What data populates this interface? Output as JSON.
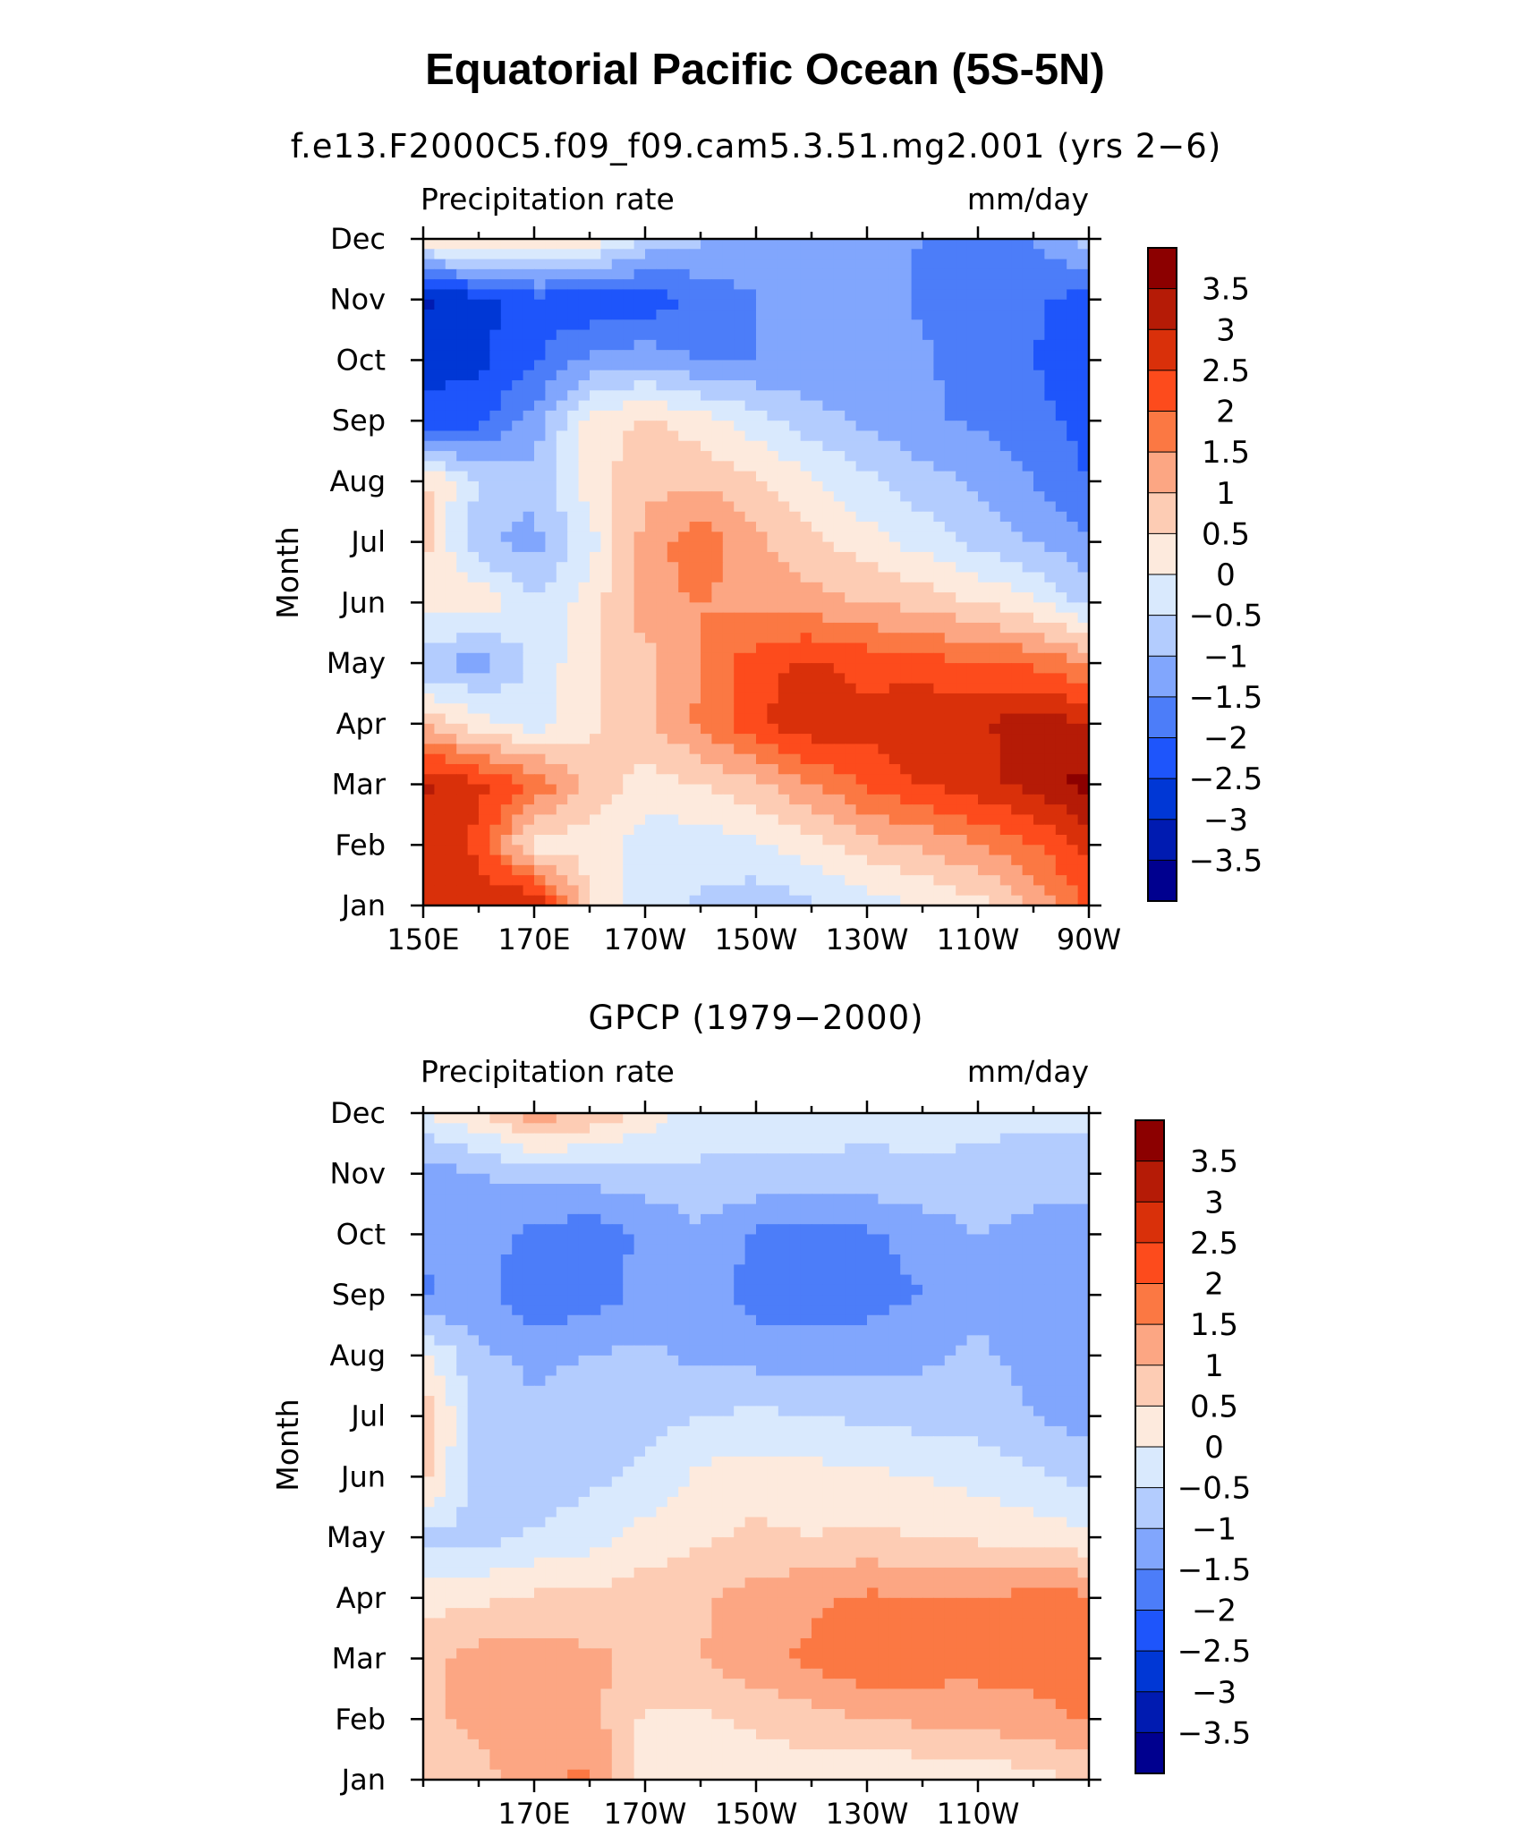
{
  "figure_title": "Equatorial Pacific Ocean (5S-5N)",
  "colorbar_levels": [
    "3.5",
    "3",
    "2.5",
    "2",
    "1.5",
    "1",
    "0.5",
    "0",
    "−0.5",
    "−1",
    "−1.5",
    "−2",
    "−2.5",
    "−3",
    "−3.5"
  ],
  "colors": [
    "#00008f",
    "#001bb1",
    "#0037d5",
    "#1e55fb",
    "#4c7df9",
    "#81a6fd",
    "#b3ccfe",
    "#d9e9fd",
    "#fdeadd",
    "#fdccb4",
    "#fca683",
    "#fb7843",
    "#fd4b1c",
    "#d9300a",
    "#b51b06",
    "#8c0000"
  ],
  "chart_data": [
    {
      "type": "heatmap",
      "title": "f.e13.F2000C5.f09_f09.cam5.3.51.mg2.001 (yrs 2−6)",
      "left_label": "Precipitation rate",
      "right_label": "mm/day",
      "xlabel": "",
      "ylabel": "Month",
      "xlim": [
        150,
        270
      ],
      "x_ticks": [
        150,
        170,
        190,
        210,
        230,
        250,
        270
      ],
      "x_tick_labels": [
        "150E",
        "170E",
        "170W",
        "150W",
        "130W",
        "110W",
        "90W"
      ],
      "y_tick_labels": [
        "Jan",
        "Feb",
        "Mar",
        "Apr",
        "May",
        "Jun",
        "Jul",
        "Aug",
        "Sep",
        "Oct",
        "Nov",
        "Dec"
      ],
      "levels": [
        -3.5,
        -3,
        -2.5,
        -2,
        -1.5,
        -1,
        -0.5,
        0,
        0.5,
        1,
        1.5,
        2,
        2.5,
        3,
        3.5
      ],
      "x": [
        150,
        160,
        170,
        180,
        190,
        200,
        210,
        220,
        230,
        240,
        250,
        260,
        270
      ],
      "y": [
        "Jan",
        "Feb",
        "Mar",
        "Apr",
        "May",
        "Jun",
        "Jul",
        "Aug",
        "Sep",
        "Oct",
        "Nov",
        "Dec"
      ],
      "z": [
        [
          2.8,
          2.9,
          3.2,
          0.5,
          -0.2,
          -0.6,
          -0.8,
          -0.6,
          -0.3,
          0.0,
          0.3,
          1.0,
          2.2
        ],
        [
          2.7,
          2.4,
          0.2,
          0.3,
          -0.3,
          -0.3,
          -0.1,
          0.3,
          0.8,
          1.1,
          1.5,
          2.0,
          2.6
        ],
        [
          3.1,
          2.6,
          2.0,
          0.8,
          0.3,
          0.5,
          0.9,
          1.5,
          2.1,
          2.5,
          2.8,
          3.2,
          3.7
        ],
        [
          0.9,
          0.2,
          -0.3,
          0.4,
          0.9,
          1.6,
          2.4,
          2.9,
          2.7,
          3.0,
          2.9,
          3.3,
          3.0
        ],
        [
          -1.0,
          -1.2,
          -0.4,
          0.4,
          0.8,
          1.5,
          2.3,
          2.6,
          2.3,
          2.2,
          2.0,
          1.9,
          1.5
        ],
        [
          0.3,
          0.4,
          -0.5,
          0.2,
          1.3,
          1.5,
          1.3,
          1.2,
          1.0,
          0.8,
          0.5,
          0.1,
          -0.7
        ],
        [
          0.7,
          -0.9,
          -1.2,
          -0.2,
          1.2,
          1.9,
          1.1,
          0.6,
          0.2,
          -0.2,
          -0.7,
          -1.0,
          -1.4
        ],
        [
          0.6,
          -0.5,
          -0.8,
          0.3,
          0.8,
          0.9,
          0.6,
          0.1,
          -0.4,
          -0.8,
          -1.1,
          -1.5,
          -2.0
        ],
        [
          -2.3,
          -2.2,
          -1.3,
          0.2,
          0.6,
          0.2,
          -0.3,
          -0.8,
          -1.1,
          -1.4,
          -1.6,
          -1.8,
          -2.2
        ],
        [
          -2.7,
          -2.6,
          -2.1,
          -1.4,
          -1.2,
          -1.5,
          -1.5,
          -1.4,
          -1.2,
          -1.4,
          -1.8,
          -2.0,
          -2.4
        ],
        [
          -3.1,
          -2.7,
          -2.2,
          -2.4,
          -2.3,
          -1.9,
          -1.5,
          -1.3,
          -1.2,
          -1.6,
          -1.9,
          -1.9,
          -2.2
        ],
        [
          0.3,
          0.5,
          0.7,
          0.4,
          -0.6,
          -0.9,
          -1.2,
          -1.3,
          -1.4,
          -1.5,
          -1.6,
          -1.5,
          -0.8
        ]
      ]
    },
    {
      "type": "heatmap",
      "title": "GPCP (1979−2000)",
      "left_label": "Precipitation rate",
      "right_label": "mm/day",
      "xlabel": "",
      "ylabel": "Month",
      "xlim": [
        150,
        270
      ],
      "x_ticks": [
        170,
        190,
        210,
        230,
        250
      ],
      "x_tick_labels": [
        "170E",
        "170W",
        "150W",
        "130W",
        "110W"
      ],
      "y_tick_labels": [
        "Jan",
        "Feb",
        "Mar",
        "Apr",
        "May",
        "Jun",
        "Jul",
        "Aug",
        "Sep",
        "Oct",
        "Nov",
        "Dec"
      ],
      "levels": [
        -3.5,
        -3,
        -2.5,
        -2,
        -1.5,
        -1,
        -0.5,
        0,
        0.5,
        1,
        1.5,
        2,
        2.5,
        3,
        3.5
      ],
      "x": [
        150,
        160,
        170,
        180,
        190,
        200,
        210,
        220,
        230,
        240,
        250,
        260,
        270
      ],
      "y": [
        "Jan",
        "Feb",
        "Mar",
        "Apr",
        "May",
        "Jun",
        "Jul",
        "Aug",
        "Sep",
        "Oct",
        "Nov",
        "Dec"
      ],
      "z": [
        [
          0.7,
          0.8,
          1.4,
          1.6,
          0.3,
          0.2,
          0.2,
          0.2,
          0.0,
          0.1,
          0.2,
          0.3,
          0.6
        ],
        [
          0.9,
          1.1,
          1.4,
          1.2,
          0.4,
          0.4,
          0.6,
          0.8,
          1.0,
          1.1,
          1.2,
          1.3,
          1.6
        ],
        [
          0.8,
          1.2,
          1.3,
          1.1,
          0.9,
          1.0,
          1.4,
          1.6,
          2.0,
          1.8,
          1.7,
          1.8,
          1.6
        ],
        [
          0.3,
          0.4,
          0.6,
          0.6,
          0.8,
          0.9,
          1.2,
          1.4,
          1.6,
          1.5,
          1.5,
          1.7,
          1.6
        ],
        [
          -0.6,
          -0.7,
          -0.4,
          -0.2,
          0.2,
          0.4,
          0.6,
          0.5,
          0.6,
          0.5,
          0.4,
          0.3,
          0.1
        ],
        [
          0.7,
          -0.8,
          -0.9,
          -0.6,
          -0.4,
          0.1,
          0.3,
          0.2,
          0.1,
          0.0,
          -0.2,
          -0.4,
          -0.7
        ],
        [
          0.9,
          -0.8,
          -0.9,
          -0.8,
          -0.7,
          -0.5,
          -0.4,
          -0.5,
          -0.6,
          -0.7,
          -0.7,
          -1.0,
          -1.2
        ],
        [
          0.1,
          -0.9,
          -1.1,
          -1.0,
          -0.9,
          -1.1,
          -1.2,
          -1.3,
          -1.2,
          -1.1,
          -0.9,
          -1.2,
          -1.3
        ],
        [
          -1.6,
          -1.3,
          -1.9,
          -1.8,
          -1.3,
          -1.2,
          -1.7,
          -1.8,
          -1.7,
          -1.5,
          -1.1,
          -1.3,
          -1.4
        ],
        [
          -1.4,
          -1.3,
          -1.6,
          -1.8,
          -1.4,
          -1.1,
          -1.6,
          -1.7,
          -1.6,
          -1.3,
          -1.0,
          -1.2,
          -1.3
        ],
        [
          -1.3,
          -1.0,
          -0.8,
          -0.8,
          -0.7,
          -0.6,
          -0.6,
          -0.6,
          -0.6,
          -0.6,
          -0.6,
          -0.7,
          -0.8
        ],
        [
          0.0,
          0.4,
          1.3,
          1.0,
          0.3,
          -0.2,
          -0.3,
          -0.3,
          -0.4,
          -0.3,
          -0.4,
          -0.4,
          -0.3
        ]
      ]
    }
  ]
}
